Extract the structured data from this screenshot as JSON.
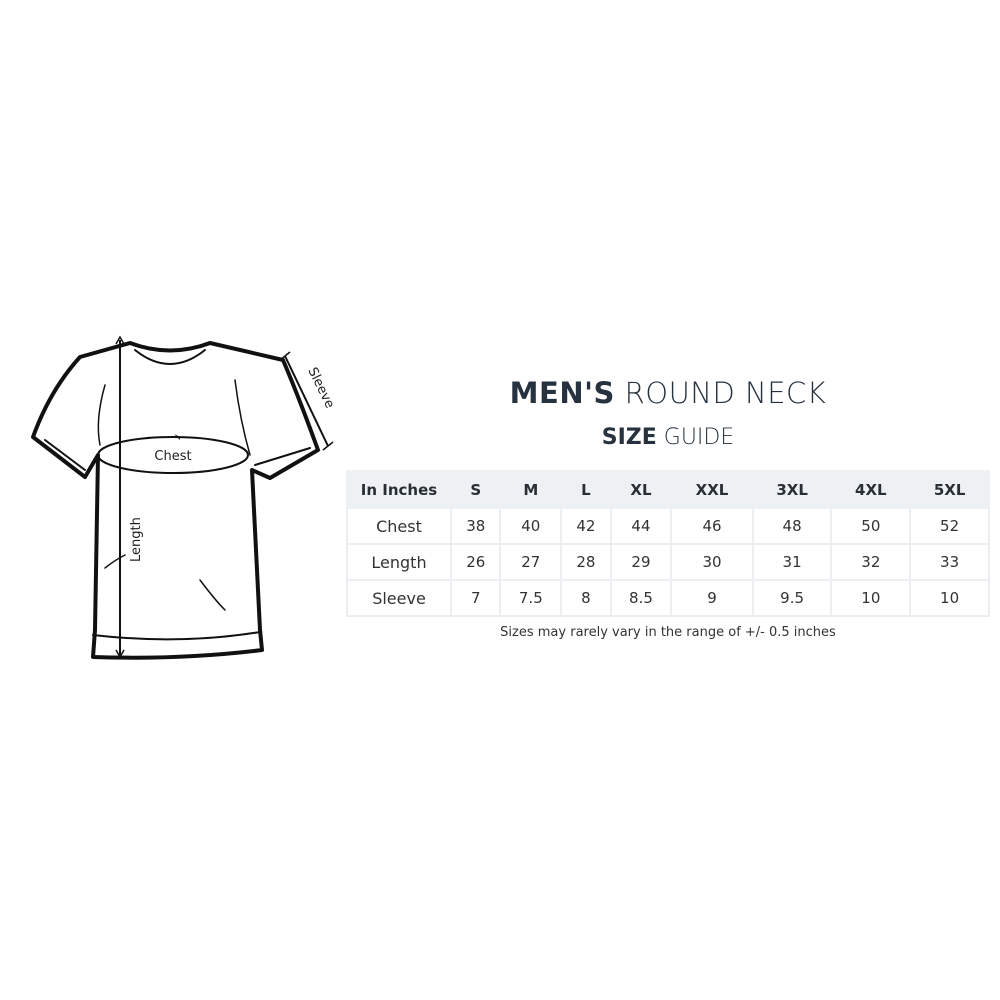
{
  "title": {
    "bold": "MEN'S",
    "light": "ROUND NECK"
  },
  "subtitle": {
    "bold": "SIZE",
    "light": "GUIDE"
  },
  "diagram_labels": {
    "chest": "Chest",
    "length": "Length",
    "sleeve": "Sleeve"
  },
  "table": {
    "corner": "In Inches",
    "sizes": [
      "S",
      "M",
      "L",
      "XL",
      "XXL",
      "3XL",
      "4XL",
      "5XL"
    ],
    "rows": [
      {
        "label": "Chest",
        "values": [
          "38",
          "40",
          "42",
          "44",
          "46",
          "48",
          "50",
          "52"
        ]
      },
      {
        "label": "Length",
        "values": [
          "26",
          "27",
          "28",
          "29",
          "30",
          "31",
          "32",
          "33"
        ]
      },
      {
        "label": "Sleeve",
        "values": [
          "7",
          "7.5",
          "8",
          "8.5",
          "9",
          "9.5",
          "10",
          "10"
        ]
      }
    ]
  },
  "note": "Sizes may rarely vary in the range of +/- 0.5 inches",
  "colors": {
    "title": "#26323f",
    "header_bg": "#eef1f4"
  }
}
